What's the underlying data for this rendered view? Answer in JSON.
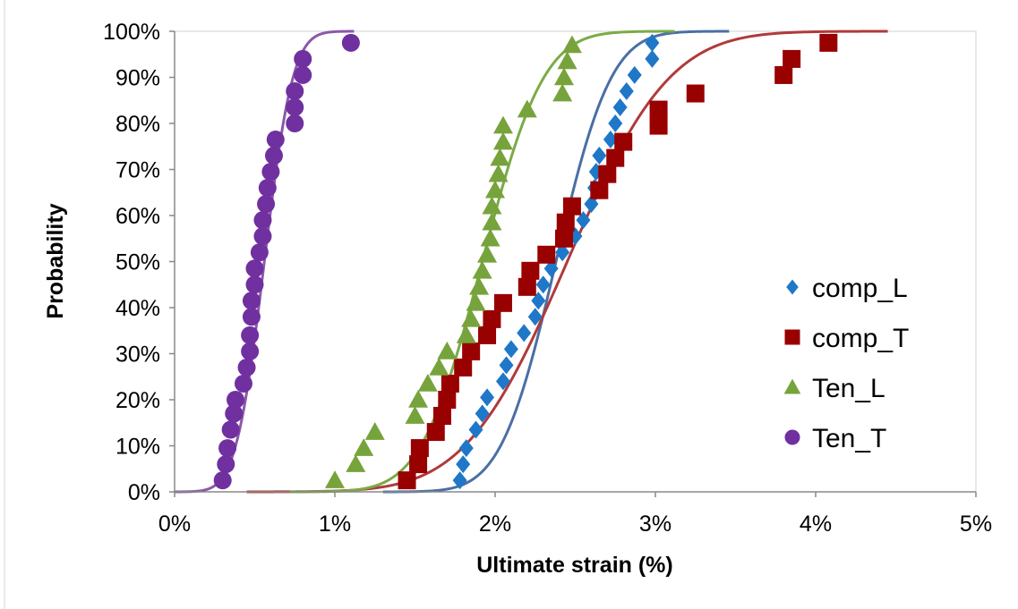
{
  "chart_data": {
    "type": "scatter",
    "title": "",
    "xlabel": "Ultimate strain (%)",
    "ylabel": "Probability",
    "xlim": [
      0,
      5
    ],
    "ylim": [
      0,
      100
    ],
    "x_ticks": [
      0,
      1,
      2,
      3,
      4,
      5
    ],
    "x_tick_labels": [
      "0%",
      "1%",
      "2%",
      "3%",
      "4%",
      "5%"
    ],
    "y_ticks": [
      0,
      10,
      20,
      30,
      40,
      50,
      60,
      70,
      80,
      90,
      100
    ],
    "y_tick_labels": [
      "0%",
      "10%",
      "20%",
      "30%",
      "40%",
      "50%",
      "60%",
      "70%",
      "80%",
      "90%",
      "100%"
    ],
    "grid": false,
    "legend_position": "right",
    "series": [
      {
        "name": "comp_L",
        "marker": "diamond",
        "color": "#1f77c8",
        "fit_color": "#4a6fa5",
        "points": [
          [
            1.78,
            2.5
          ],
          [
            1.8,
            6
          ],
          [
            1.82,
            9.5
          ],
          [
            1.88,
            13.5
          ],
          [
            1.92,
            17
          ],
          [
            1.95,
            20.5
          ],
          [
            2.05,
            24
          ],
          [
            2.07,
            27.5
          ],
          [
            2.1,
            31
          ],
          [
            2.18,
            34.5
          ],
          [
            2.25,
            38
          ],
          [
            2.27,
            41.5
          ],
          [
            2.3,
            45
          ],
          [
            2.35,
            48.5
          ],
          [
            2.42,
            52
          ],
          [
            2.5,
            55.5
          ],
          [
            2.55,
            59
          ],
          [
            2.6,
            62.5
          ],
          [
            2.62,
            66
          ],
          [
            2.63,
            69.5
          ],
          [
            2.65,
            73
          ],
          [
            2.72,
            76.5
          ],
          [
            2.75,
            80
          ],
          [
            2.78,
            83.5
          ],
          [
            2.82,
            87
          ],
          [
            2.87,
            90.5
          ],
          [
            2.98,
            94
          ],
          [
            2.98,
            97.5
          ]
        ],
        "fit": {
          "mu": 2.38,
          "sigma": 0.27
        }
      },
      {
        "name": "comp_T",
        "marker": "square",
        "color": "#990000",
        "fit_color": "#b03a3a",
        "points": [
          [
            1.45,
            2.5
          ],
          [
            1.52,
            6
          ],
          [
            1.53,
            9.5
          ],
          [
            1.63,
            13
          ],
          [
            1.67,
            16.5
          ],
          [
            1.7,
            20
          ],
          [
            1.72,
            23.5
          ],
          [
            1.8,
            27
          ],
          [
            1.85,
            30.5
          ],
          [
            1.95,
            34
          ],
          [
            1.98,
            37.5
          ],
          [
            2.05,
            41
          ],
          [
            2.2,
            44.5
          ],
          [
            2.22,
            48
          ],
          [
            2.32,
            51.5
          ],
          [
            2.43,
            55
          ],
          [
            2.44,
            58.5
          ],
          [
            2.48,
            62
          ],
          [
            2.65,
            65.5
          ],
          [
            2.7,
            69
          ],
          [
            2.75,
            72.5
          ],
          [
            2.8,
            76
          ],
          [
            3.02,
            79.5
          ],
          [
            3.02,
            83
          ],
          [
            3.25,
            86.5
          ],
          [
            3.8,
            90.5
          ],
          [
            3.85,
            94
          ],
          [
            4.08,
            97.5
          ]
        ],
        "fit": {
          "mu": 2.45,
          "sigma": 0.5
        }
      },
      {
        "name": "Ten_L",
        "marker": "triangle",
        "color": "#77a33c",
        "fit_color": "#7aab45",
        "points": [
          [
            1.0,
            2.5
          ],
          [
            1.13,
            6
          ],
          [
            1.18,
            9.5
          ],
          [
            1.25,
            13
          ],
          [
            1.5,
            16.5
          ],
          [
            1.52,
            20
          ],
          [
            1.58,
            23.5
          ],
          [
            1.65,
            27
          ],
          [
            1.7,
            30.5
          ],
          [
            1.82,
            34
          ],
          [
            1.85,
            37.5
          ],
          [
            1.88,
            41
          ],
          [
            1.9,
            44.5
          ],
          [
            1.92,
            48
          ],
          [
            1.95,
            51.5
          ],
          [
            1.97,
            55
          ],
          [
            1.98,
            58.5
          ],
          [
            1.98,
            62
          ],
          [
            2.0,
            65.5
          ],
          [
            2.02,
            69
          ],
          [
            2.03,
            72.5
          ],
          [
            2.05,
            76
          ],
          [
            2.05,
            79.5
          ],
          [
            2.2,
            83
          ],
          [
            2.42,
            86.5
          ],
          [
            2.43,
            90
          ],
          [
            2.45,
            93.5
          ],
          [
            2.48,
            97
          ]
        ],
        "fit": {
          "mu": 1.92,
          "sigma": 0.3
        }
      },
      {
        "name": "Ten_T",
        "marker": "circle",
        "color": "#7030a0",
        "fit_color": "#8a5aa8",
        "points": [
          [
            0.3,
            2.5
          ],
          [
            0.32,
            6
          ],
          [
            0.33,
            9.5
          ],
          [
            0.35,
            13.5
          ],
          [
            0.37,
            17
          ],
          [
            0.38,
            20
          ],
          [
            0.43,
            23.5
          ],
          [
            0.45,
            27
          ],
          [
            0.47,
            30.5
          ],
          [
            0.47,
            34
          ],
          [
            0.48,
            38
          ],
          [
            0.48,
            41.5
          ],
          [
            0.5,
            45
          ],
          [
            0.5,
            48.5
          ],
          [
            0.53,
            52
          ],
          [
            0.55,
            55.5
          ],
          [
            0.55,
            59
          ],
          [
            0.57,
            62.5
          ],
          [
            0.58,
            66
          ],
          [
            0.6,
            69.5
          ],
          [
            0.62,
            73
          ],
          [
            0.63,
            76.5
          ],
          [
            0.75,
            80
          ],
          [
            0.75,
            83.5
          ],
          [
            0.75,
            87
          ],
          [
            0.8,
            90.5
          ],
          [
            0.8,
            94
          ],
          [
            1.1,
            97.5
          ]
        ],
        "fit": {
          "mu": 0.56,
          "sigma": 0.14
        }
      }
    ]
  }
}
